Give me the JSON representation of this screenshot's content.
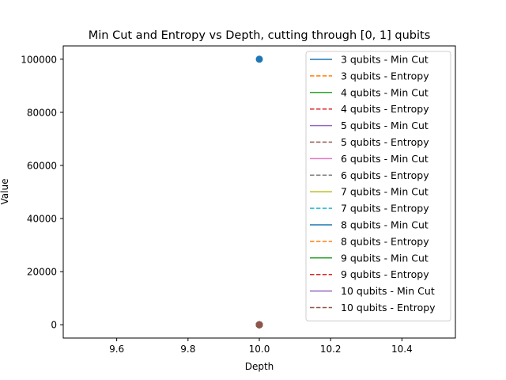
{
  "chart_data": {
    "type": "line",
    "title": "Min Cut and Entropy vs Depth, cutting through [0, 1] qubits",
    "xlabel": "Depth",
    "ylabel": "Value",
    "xlim": [
      9.45,
      10.55
    ],
    "ylim": [
      -5000,
      105000
    ],
    "xticks": [
      9.6,
      9.8,
      10.0,
      10.2,
      10.4
    ],
    "xtick_labels": [
      "9.6",
      "9.8",
      "10.0",
      "10.2",
      "10.4"
    ],
    "yticks": [
      0,
      20000,
      40000,
      60000,
      80000,
      100000
    ],
    "ytick_labels": [
      "0",
      "20000",
      "40000",
      "60000",
      "80000",
      "100000"
    ],
    "grid": false,
    "legend_position": "top-right",
    "series": [
      {
        "name": "3 qubits - Min Cut",
        "style": "solid",
        "color": "#1f77b4",
        "x": [
          10
        ],
        "y": [
          100000
        ]
      },
      {
        "name": "3 qubits - Entropy",
        "style": "dashed",
        "color": "#ff7f0e",
        "x": [
          10
        ],
        "y": [
          0
        ]
      },
      {
        "name": "4 qubits - Min Cut",
        "style": "solid",
        "color": "#2ca02c",
        "x": [
          10
        ],
        "y": [
          0
        ]
      },
      {
        "name": "4 qubits - Entropy",
        "style": "dashed",
        "color": "#d62728",
        "x": [
          10
        ],
        "y": [
          0
        ]
      },
      {
        "name": "5 qubits - Min Cut",
        "style": "solid",
        "color": "#9467bd",
        "x": [
          10
        ],
        "y": [
          0
        ]
      },
      {
        "name": "5 qubits - Entropy",
        "style": "dashed",
        "color": "#8c564b",
        "x": [
          10
        ],
        "y": [
          0
        ]
      },
      {
        "name": "6 qubits - Min Cut",
        "style": "solid",
        "color": "#e377c2",
        "x": [
          10
        ],
        "y": [
          0
        ]
      },
      {
        "name": "6 qubits - Entropy",
        "style": "dashed",
        "color": "#7f7f7f",
        "x": [
          10
        ],
        "y": [
          0
        ]
      },
      {
        "name": "7 qubits - Min Cut",
        "style": "solid",
        "color": "#bcbd22",
        "x": [
          10
        ],
        "y": [
          0
        ]
      },
      {
        "name": "7 qubits - Entropy",
        "style": "dashed",
        "color": "#17becf",
        "x": [
          10
        ],
        "y": [
          0
        ]
      },
      {
        "name": "8 qubits - Min Cut",
        "style": "solid",
        "color": "#1f77b4",
        "x": [
          10
        ],
        "y": [
          0
        ]
      },
      {
        "name": "8 qubits - Entropy",
        "style": "dashed",
        "color": "#ff7f0e",
        "x": [
          10
        ],
        "y": [
          0
        ]
      },
      {
        "name": "9 qubits - Min Cut",
        "style": "solid",
        "color": "#2ca02c",
        "x": [
          10
        ],
        "y": [
          0
        ]
      },
      {
        "name": "9 qubits - Entropy",
        "style": "dashed",
        "color": "#d62728",
        "x": [
          10
        ],
        "y": [
          0
        ]
      },
      {
        "name": "10 qubits - Min Cut",
        "style": "solid",
        "color": "#9467bd",
        "x": [
          10
        ],
        "y": [
          0
        ]
      },
      {
        "name": "10 qubits - Entropy",
        "style": "dashed",
        "color": "#8c564b",
        "x": [
          10
        ],
        "y": [
          0
        ]
      }
    ]
  }
}
